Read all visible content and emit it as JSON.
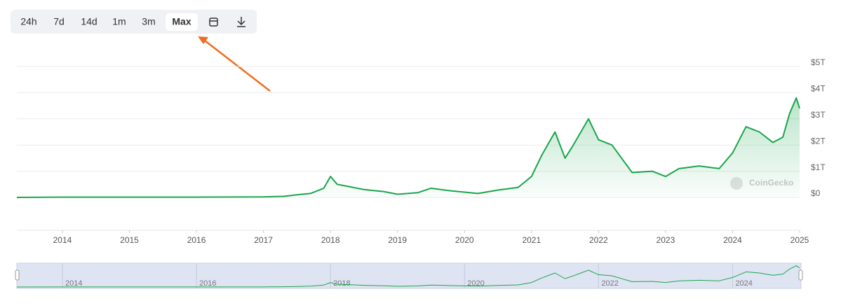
{
  "range_buttons": [
    "24h",
    "7d",
    "14d",
    "1m",
    "3m",
    "Max"
  ],
  "chart_data": {
    "type": "line",
    "watermark": "CoinGecko",
    "xlim": [
      2013.32,
      2025
    ],
    "xticks": [
      2014,
      2015,
      2016,
      2017,
      2018,
      2019,
      2020,
      2021,
      2022,
      2023,
      2024,
      2025
    ],
    "ylim": [
      0,
      5
    ],
    "yticks": [
      {
        "value": 0,
        "label": "$0"
      },
      {
        "value": 1,
        "label": "$1T"
      },
      {
        "value": 2,
        "label": "$2T"
      },
      {
        "value": 3,
        "label": "$3T"
      },
      {
        "value": 4,
        "label": "$4T"
      },
      {
        "value": 5,
        "label": "$5T"
      }
    ],
    "grid": true,
    "navigator_ticks": [
      2014,
      2016,
      2018,
      2020,
      2022,
      2024
    ],
    "series": [
      {
        "color": "#1aa64b",
        "x": [
          2013.32,
          2014.0,
          2015.0,
          2016.0,
          2017.0,
          2017.3,
          2017.5,
          2017.7,
          2017.9,
          2018.0,
          2018.1,
          2018.3,
          2018.5,
          2018.8,
          2019.0,
          2019.3,
          2019.5,
          2019.8,
          2020.0,
          2020.2,
          2020.5,
          2020.8,
          2021.0,
          2021.15,
          2021.35,
          2021.5,
          2021.6,
          2021.85,
          2022.0,
          2022.2,
          2022.4,
          2022.5,
          2022.8,
          2023.0,
          2023.2,
          2023.5,
          2023.8,
          2024.0,
          2024.2,
          2024.4,
          2024.6,
          2024.75,
          2024.85,
          2024.95,
          2025.0
        ],
        "values": [
          0.0,
          0.01,
          0.01,
          0.01,
          0.02,
          0.04,
          0.1,
          0.15,
          0.35,
          0.8,
          0.5,
          0.4,
          0.3,
          0.22,
          0.12,
          0.18,
          0.35,
          0.25,
          0.2,
          0.15,
          0.28,
          0.38,
          0.8,
          1.6,
          2.5,
          1.5,
          1.9,
          3.0,
          2.2,
          2.0,
          1.3,
          0.95,
          1.0,
          0.8,
          1.1,
          1.2,
          1.1,
          1.7,
          2.7,
          2.5,
          2.1,
          2.3,
          3.2,
          3.8,
          3.4
        ]
      }
    ]
  }
}
